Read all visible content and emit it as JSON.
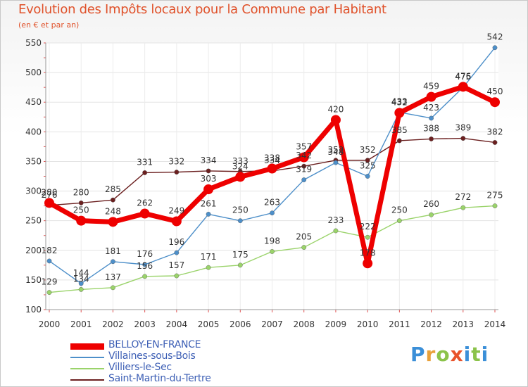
{
  "title": "Evolution des Impôts locaux pour la Commune par Habitant",
  "subtitle": "(en € et par an)",
  "brand": {
    "text": "Proxiti",
    "letters": [
      "P",
      "r",
      "o",
      "x",
      "i",
      "t",
      "i"
    ],
    "letter_colors": [
      "#3b8fd8",
      "#e8a13a",
      "#8bc34a",
      "#e8532b",
      "#3b8fd8",
      "#8bc34a",
      "#3b8fd8"
    ]
  },
  "chart_data": {
    "type": "line",
    "title": "Evolution des Impôts locaux pour la Commune par Habitant",
    "subtitle": "(en € et par an)",
    "xlabel": "",
    "ylabel": "",
    "x": [
      "2000",
      "2001",
      "2002",
      "2003",
      "2004",
      "2005",
      "2006",
      "2007",
      "2008",
      "2009",
      "2010",
      "2011",
      "2012",
      "2013",
      "2014"
    ],
    "ylim": [
      100,
      550
    ],
    "yticks": [
      100,
      150,
      200,
      250,
      300,
      350,
      400,
      450,
      500,
      550
    ],
    "grid": true,
    "legend": "bottom-left",
    "series": [
      {
        "name": "BELLOY-EN-FRANCE",
        "color": "#ee0000",
        "values": [
          280,
          250,
          248,
          262,
          249,
          303,
          324,
          338,
          357,
          420,
          178,
          432,
          459,
          476,
          450
        ]
      },
      {
        "name": "Villaines-sous-Bois",
        "color": "#4d8fc9",
        "values": [
          182,
          144,
          181,
          176,
          196,
          261,
          250,
          263,
          319,
          348,
          325,
          433,
          423,
          475,
          542
        ]
      },
      {
        "name": "Villiers-le-Sec",
        "color": "#9ad36a",
        "values": [
          129,
          134,
          137,
          156,
          157,
          171,
          175,
          198,
          205,
          233,
          222,
          250,
          260,
          272,
          275
        ]
      },
      {
        "name": "Saint-Martin-du-Tertre",
        "color": "#6b1f1f",
        "values": [
          276,
          280,
          285,
          331,
          332,
          334,
          333,
          334,
          342,
          352,
          352,
          385,
          388,
          389,
          382
        ]
      }
    ]
  }
}
